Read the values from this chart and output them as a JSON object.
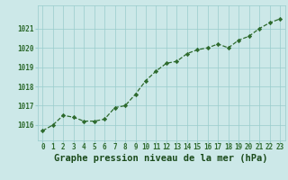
{
  "x": [
    0,
    1,
    2,
    3,
    4,
    5,
    6,
    7,
    8,
    9,
    10,
    11,
    12,
    13,
    14,
    15,
    16,
    17,
    18,
    19,
    20,
    21,
    22,
    23
  ],
  "y": [
    1015.7,
    1016.0,
    1016.5,
    1016.4,
    1016.2,
    1016.2,
    1016.3,
    1016.9,
    1017.0,
    1017.6,
    1018.3,
    1018.8,
    1019.2,
    1019.3,
    1019.7,
    1019.9,
    1020.0,
    1020.2,
    1020.0,
    1020.4,
    1020.6,
    1021.0,
    1021.3,
    1021.5
  ],
  "line_color": "#2d6a2d",
  "marker_color": "#2d6a2d",
  "bg_color": "#cce8e8",
  "grid_color": "#99cccc",
  "xlabel": "Graphe pression niveau de la mer (hPa)",
  "xlabel_color": "#1a4a1a",
  "ylabel_ticks": [
    1016,
    1017,
    1018,
    1019,
    1020,
    1021
  ],
  "ylim": [
    1015.2,
    1022.2
  ],
  "xlim": [
    -0.5,
    23.5
  ],
  "tick_color": "#2d6a2d",
  "tick_fontsize": 5.5,
  "xlabel_fontsize": 7.5
}
